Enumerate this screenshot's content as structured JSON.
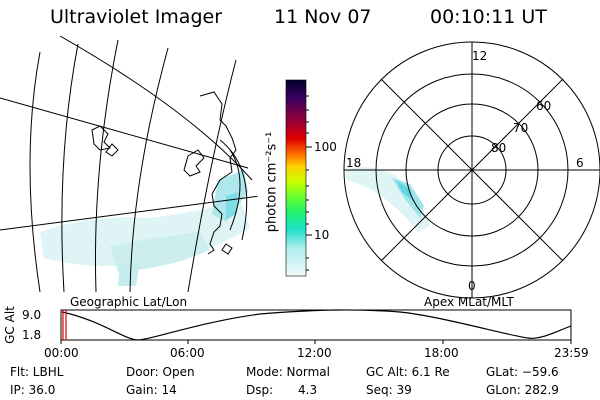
{
  "header": {
    "instrument": "Ultraviolet Imager",
    "date": "11 Nov 07",
    "time": "00:10:11 UT"
  },
  "geographic_panel": {
    "label": "Geographic Lat/Lon"
  },
  "colorbar": {
    "unit_label": "photon cm⁻²s⁻¹",
    "tick_100": "100",
    "tick_10": "10",
    "colors": [
      "#000040",
      "#3a0050",
      "#700060",
      "#a00020",
      "#d00000",
      "#ff4000",
      "#ff9000",
      "#ffd000",
      "#d0ff00",
      "#70ff30",
      "#20f060",
      "#20e0c0",
      "#b0ecec",
      "#e8f8f8"
    ]
  },
  "polar_panel": {
    "label": "Apex MLat/MLT",
    "mlt_12": "12",
    "mlt_18": "18",
    "mlt_6": "6",
    "mlt_0": "0",
    "lat_60": "60",
    "lat_70": "70",
    "lat_80": "80"
  },
  "altitude_plot": {
    "axis_label": "GC Alt",
    "y_top": "9.0",
    "y_bottom": "1.8",
    "x_ticks": [
      "00:00",
      "06:00",
      "12:00",
      "18:00",
      "23:59"
    ]
  },
  "footer": {
    "filter": "Flt: LBHL",
    "door": "Door: Open",
    "mode": "Mode: Normal",
    "gc_alt": "GC Alt: 6.1 Re",
    "glat": "GLat: −59.6",
    "ip": "IP: 36.0",
    "gain": "Gain: 14",
    "dsp_label": "Dsp:",
    "dsp_value": "4.3",
    "seq": "Seq: 39",
    "glon": "GLon: 282.9"
  }
}
